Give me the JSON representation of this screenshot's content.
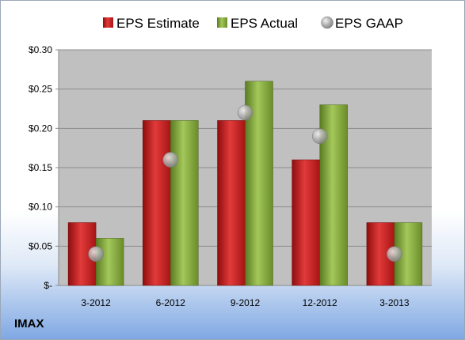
{
  "ticker": "IMAX",
  "colors": {
    "estimate": "#cc1f1f",
    "actual": "#7fa33a",
    "gaap": "#a9a9a9",
    "plot_bg": "#c0c0c0"
  },
  "chart_data": {
    "type": "bar",
    "categories": [
      "3-2012",
      "6-2012",
      "9-2012",
      "12-2012",
      "3-2013"
    ],
    "series": [
      {
        "name": "EPS Estimate",
        "kind": "bar",
        "values": [
          0.08,
          0.21,
          0.21,
          0.16,
          0.08
        ]
      },
      {
        "name": "EPS Actual",
        "kind": "bar",
        "values": [
          0.06,
          0.21,
          0.26,
          0.23,
          0.08
        ]
      },
      {
        "name": "EPS GAAP",
        "kind": "scatter",
        "values": [
          0.04,
          0.16,
          0.22,
          0.19,
          0.04
        ]
      }
    ],
    "ylim": [
      0,
      0.3
    ],
    "yticks": [
      0,
      0.05,
      0.1,
      0.15,
      0.2,
      0.25,
      0.3
    ],
    "ytick_labels": [
      "$-",
      "$0.05",
      "$0.10",
      "$0.15",
      "$0.20",
      "$0.25",
      "$0.30"
    ],
    "grid": true,
    "legend_position": "top"
  }
}
